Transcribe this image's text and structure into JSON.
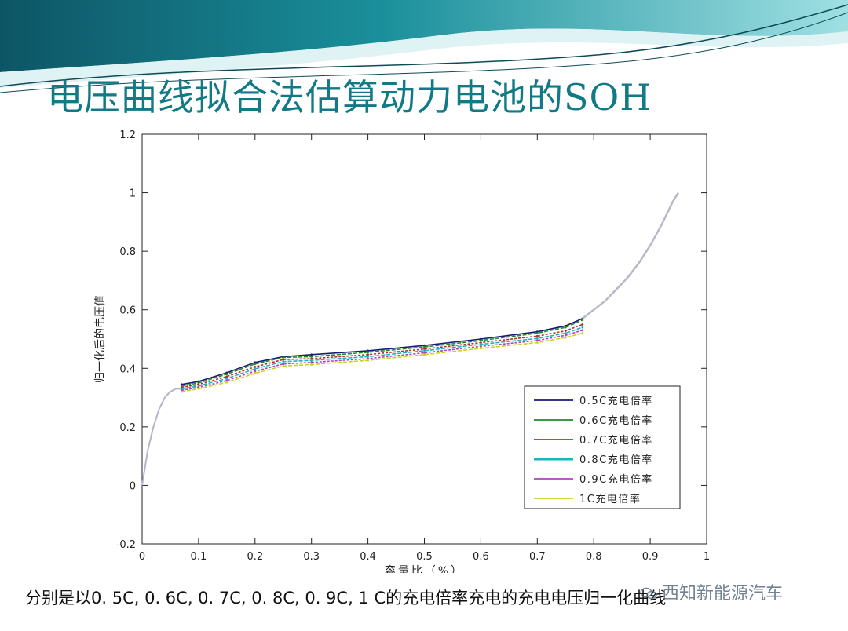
{
  "slide": {
    "title": "电压曲线拟合法估算动力电池的SOH",
    "caption": "分别是以0. 5C, 0. 6C, 0. 7C, 0. 8C, 0. 9C, 1 C的充电倍率充电的充电电压归一化曲线",
    "watermark": "西知新能源汽车",
    "colors": {
      "banner_dark": "#0e5f6e",
      "banner_light": "#7fd0d6",
      "title": "#127a86"
    }
  },
  "chart_data": {
    "type": "line",
    "title": "",
    "xlabel": "容量比（%）",
    "ylabel": "归一化后的电压值",
    "xlim": [
      0,
      1
    ],
    "ylim": [
      -0.2,
      1.2
    ],
    "xticks": [
      "0",
      "0.1",
      "0.2",
      "0.3",
      "0.4",
      "0.5",
      "0.6",
      "0.7",
      "0.8",
      "0.9",
      "1"
    ],
    "yticks": [
      "-0.2",
      "0",
      "0.2",
      "0.4",
      "0.6",
      "0.8",
      "1",
      "1.2"
    ],
    "grid": false,
    "legend_position": "bottom-right",
    "shared_curve": {
      "x": [
        0.0,
        0.01,
        0.02,
        0.03,
        0.04,
        0.05,
        0.06,
        0.07
      ],
      "y": [
        0.0,
        0.12,
        0.2,
        0.26,
        0.3,
        0.32,
        0.33,
        0.33
      ]
    },
    "upper_curve": {
      "x": [
        0.78,
        0.8,
        0.82,
        0.84,
        0.86,
        0.88,
        0.9,
        0.92,
        0.94,
        0.95
      ],
      "y": [
        0.57,
        0.6,
        0.63,
        0.67,
        0.71,
        0.76,
        0.82,
        0.89,
        0.97,
        1.0
      ]
    },
    "series": [
      {
        "name": "0.5C充电倍率",
        "color": "#1a1a7a",
        "x": [
          0.07,
          0.1,
          0.15,
          0.2,
          0.25,
          0.3,
          0.4,
          0.5,
          0.6,
          0.7,
          0.75,
          0.78
        ],
        "y": [
          0.345,
          0.355,
          0.385,
          0.42,
          0.44,
          0.447,
          0.46,
          0.478,
          0.5,
          0.525,
          0.545,
          0.57
        ]
      },
      {
        "name": "0.6C充电倍率",
        "color": "#1f8a2e",
        "x": [
          0.07,
          0.1,
          0.15,
          0.2,
          0.25,
          0.3,
          0.4,
          0.5,
          0.6,
          0.7,
          0.75,
          0.78
        ],
        "y": [
          0.34,
          0.35,
          0.38,
          0.415,
          0.437,
          0.44,
          0.455,
          0.473,
          0.495,
          0.52,
          0.54,
          0.565
        ]
      },
      {
        "name": "0.7C充电倍率",
        "color": "#c0282a",
        "x": [
          0.07,
          0.1,
          0.15,
          0.2,
          0.25,
          0.3,
          0.4,
          0.5,
          0.6,
          0.7,
          0.75,
          0.78
        ],
        "y": [
          0.335,
          0.345,
          0.372,
          0.405,
          0.43,
          0.433,
          0.447,
          0.466,
          0.488,
          0.51,
          0.528,
          0.55
        ]
      },
      {
        "name": "0.8C充电倍率",
        "color": "#18b5c2",
        "x": [
          0.07,
          0.1,
          0.15,
          0.2,
          0.25,
          0.3,
          0.4,
          0.5,
          0.6,
          0.7,
          0.75,
          0.78
        ],
        "y": [
          0.33,
          0.34,
          0.365,
          0.398,
          0.423,
          0.427,
          0.44,
          0.46,
          0.482,
          0.502,
          0.52,
          0.54
        ]
      },
      {
        "name": "0.9C充电倍率",
        "color": "#b040c0",
        "x": [
          0.07,
          0.1,
          0.15,
          0.2,
          0.25,
          0.3,
          0.4,
          0.5,
          0.6,
          0.7,
          0.75,
          0.78
        ],
        "y": [
          0.325,
          0.335,
          0.358,
          0.39,
          0.415,
          0.42,
          0.433,
          0.453,
          0.475,
          0.495,
          0.513,
          0.53
        ]
      },
      {
        "name": "1C充电倍率",
        "color": "#c7d41c",
        "x": [
          0.07,
          0.1,
          0.15,
          0.2,
          0.25,
          0.3,
          0.4,
          0.5,
          0.6,
          0.7,
          0.75,
          0.78
        ],
        "y": [
          0.32,
          0.33,
          0.352,
          0.383,
          0.408,
          0.413,
          0.427,
          0.447,
          0.468,
          0.488,
          0.505,
          0.52
        ]
      }
    ]
  }
}
